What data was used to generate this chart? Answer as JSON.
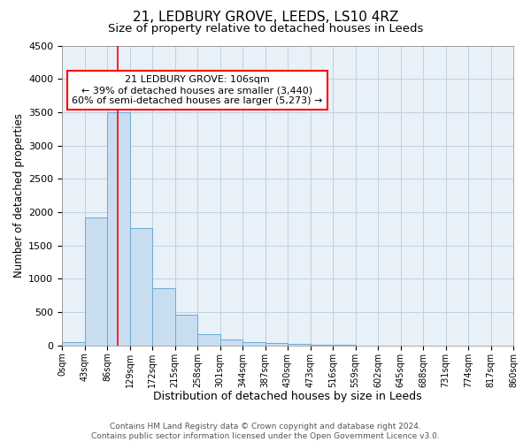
{
  "title": "21, LEDBURY GROVE, LEEDS, LS10 4RZ",
  "subtitle": "Size of property relative to detached houses in Leeds",
  "xlabel": "Distribution of detached houses by size in Leeds",
  "ylabel": "Number of detached properties",
  "bin_edges": [
    0,
    43,
    86,
    129,
    172,
    215,
    258,
    301,
    344,
    387,
    430,
    473,
    516,
    559,
    602,
    645,
    688,
    731,
    774,
    817,
    860
  ],
  "bar_heights": [
    50,
    1920,
    3500,
    1760,
    860,
    460,
    175,
    90,
    55,
    35,
    20,
    10,
    5,
    3,
    2,
    1,
    1,
    0,
    0,
    0
  ],
  "bar_color": "#c8ddf0",
  "bar_edge_color": "#6aaad4",
  "bar_edge_width": 0.7,
  "grid_color": "#c0cfe0",
  "background_color": "#e8f0f8",
  "ylim": [
    0,
    4500
  ],
  "red_line_x": 106,
  "annotation_text": "21 LEDBURY GROVE: 106sqm\n← 39% of detached houses are smaller (3,440)\n60% of semi-detached houses are larger (5,273) →",
  "annotation_box_color": "white",
  "annotation_box_edge_color": "red",
  "footnote": "Contains HM Land Registry data © Crown copyright and database right 2024.\nContains public sector information licensed under the Open Government Licence v3.0.",
  "tick_labels": [
    "0sqm",
    "43sqm",
    "86sqm",
    "129sqm",
    "172sqm",
    "215sqm",
    "258sqm",
    "301sqm",
    "344sqm",
    "387sqm",
    "430sqm",
    "473sqm",
    "516sqm",
    "559sqm",
    "602sqm",
    "645sqm",
    "688sqm",
    "731sqm",
    "774sqm",
    "817sqm",
    "860sqm"
  ],
  "title_fontsize": 11,
  "subtitle_fontsize": 9.5,
  "xlabel_fontsize": 9,
  "ylabel_fontsize": 8.5,
  "tick_fontsize": 7,
  "annotation_fontsize": 8,
  "footnote_fontsize": 6.5
}
